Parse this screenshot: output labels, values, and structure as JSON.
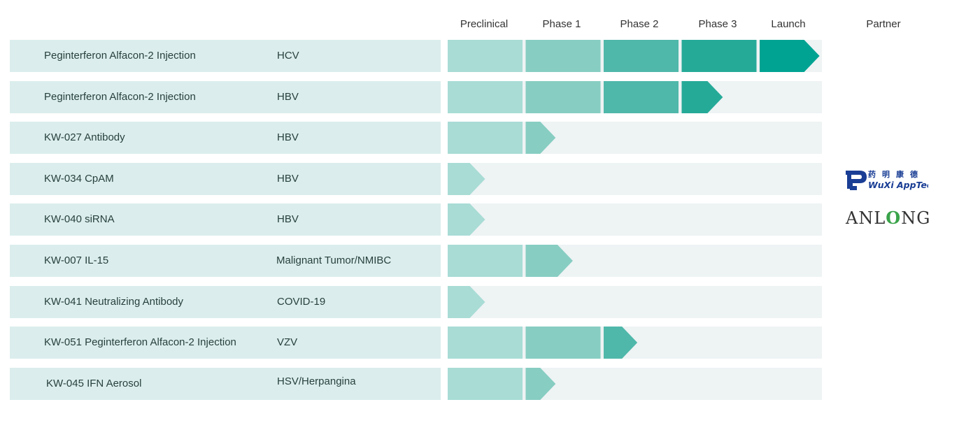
{
  "headers": {
    "preclinical": "Preclinical",
    "phase1": "Phase 1",
    "phase2": "Phase 2",
    "phase3": "Phase 3",
    "launch": "Launch",
    "partner": "Partner"
  },
  "colors": {
    "row_left_bg": "#dbeeed",
    "row_right_bg": "#eef3f4",
    "stage_colors": [
      "#a8dcd5",
      "#87cdc2",
      "#4fb8aa",
      "#26aa98",
      "#00a392"
    ]
  },
  "partners": {
    "wuxi_chinese": "药明康德",
    "wuxi_english": "WuXi AppTec",
    "anlong": "ANLONG"
  },
  "chart_data": {
    "type": "table",
    "stages": [
      "Preclinical",
      "Phase 1",
      "Phase 2",
      "Phase 3",
      "Launch"
    ],
    "rows": [
      {
        "drug": "Peginterferon Alfacon-2 Injection",
        "indication": "HCV",
        "stage_index": 4,
        "progress": 4.8
      },
      {
        "drug": "Peginterferon Alfacon-2 Injection",
        "indication": "HBV",
        "stage_index": 3,
        "progress": 3.55
      },
      {
        "drug": "KW-027 Antibody",
        "indication": "HBV",
        "stage_index": 1,
        "progress": 1.4
      },
      {
        "drug": "KW-034 CpAM",
        "indication": "HBV",
        "stage_index": 0,
        "progress": 0.5
      },
      {
        "drug": "KW-040 siRNA",
        "indication": "HBV",
        "stage_index": 0,
        "progress": 0.5
      },
      {
        "drug": "KW-007 IL-15",
        "indication": "Malignant Tumor/NMIBC",
        "stage_index": 1,
        "progress": 1.63
      },
      {
        "drug": "KW-041 Neutralizing Antibody",
        "indication": "COVID-19",
        "stage_index": 0,
        "progress": 0.5
      },
      {
        "drug": "KW-051 Peginterferon Alfacon-2 Injection",
        "indication": "VZV",
        "stage_index": 2,
        "progress": 2.45
      },
      {
        "drug": "KW-045 IFN Aerosol",
        "indication": "HSV/Herpangina",
        "stage_index": 1,
        "progress": 1.4
      }
    ]
  }
}
